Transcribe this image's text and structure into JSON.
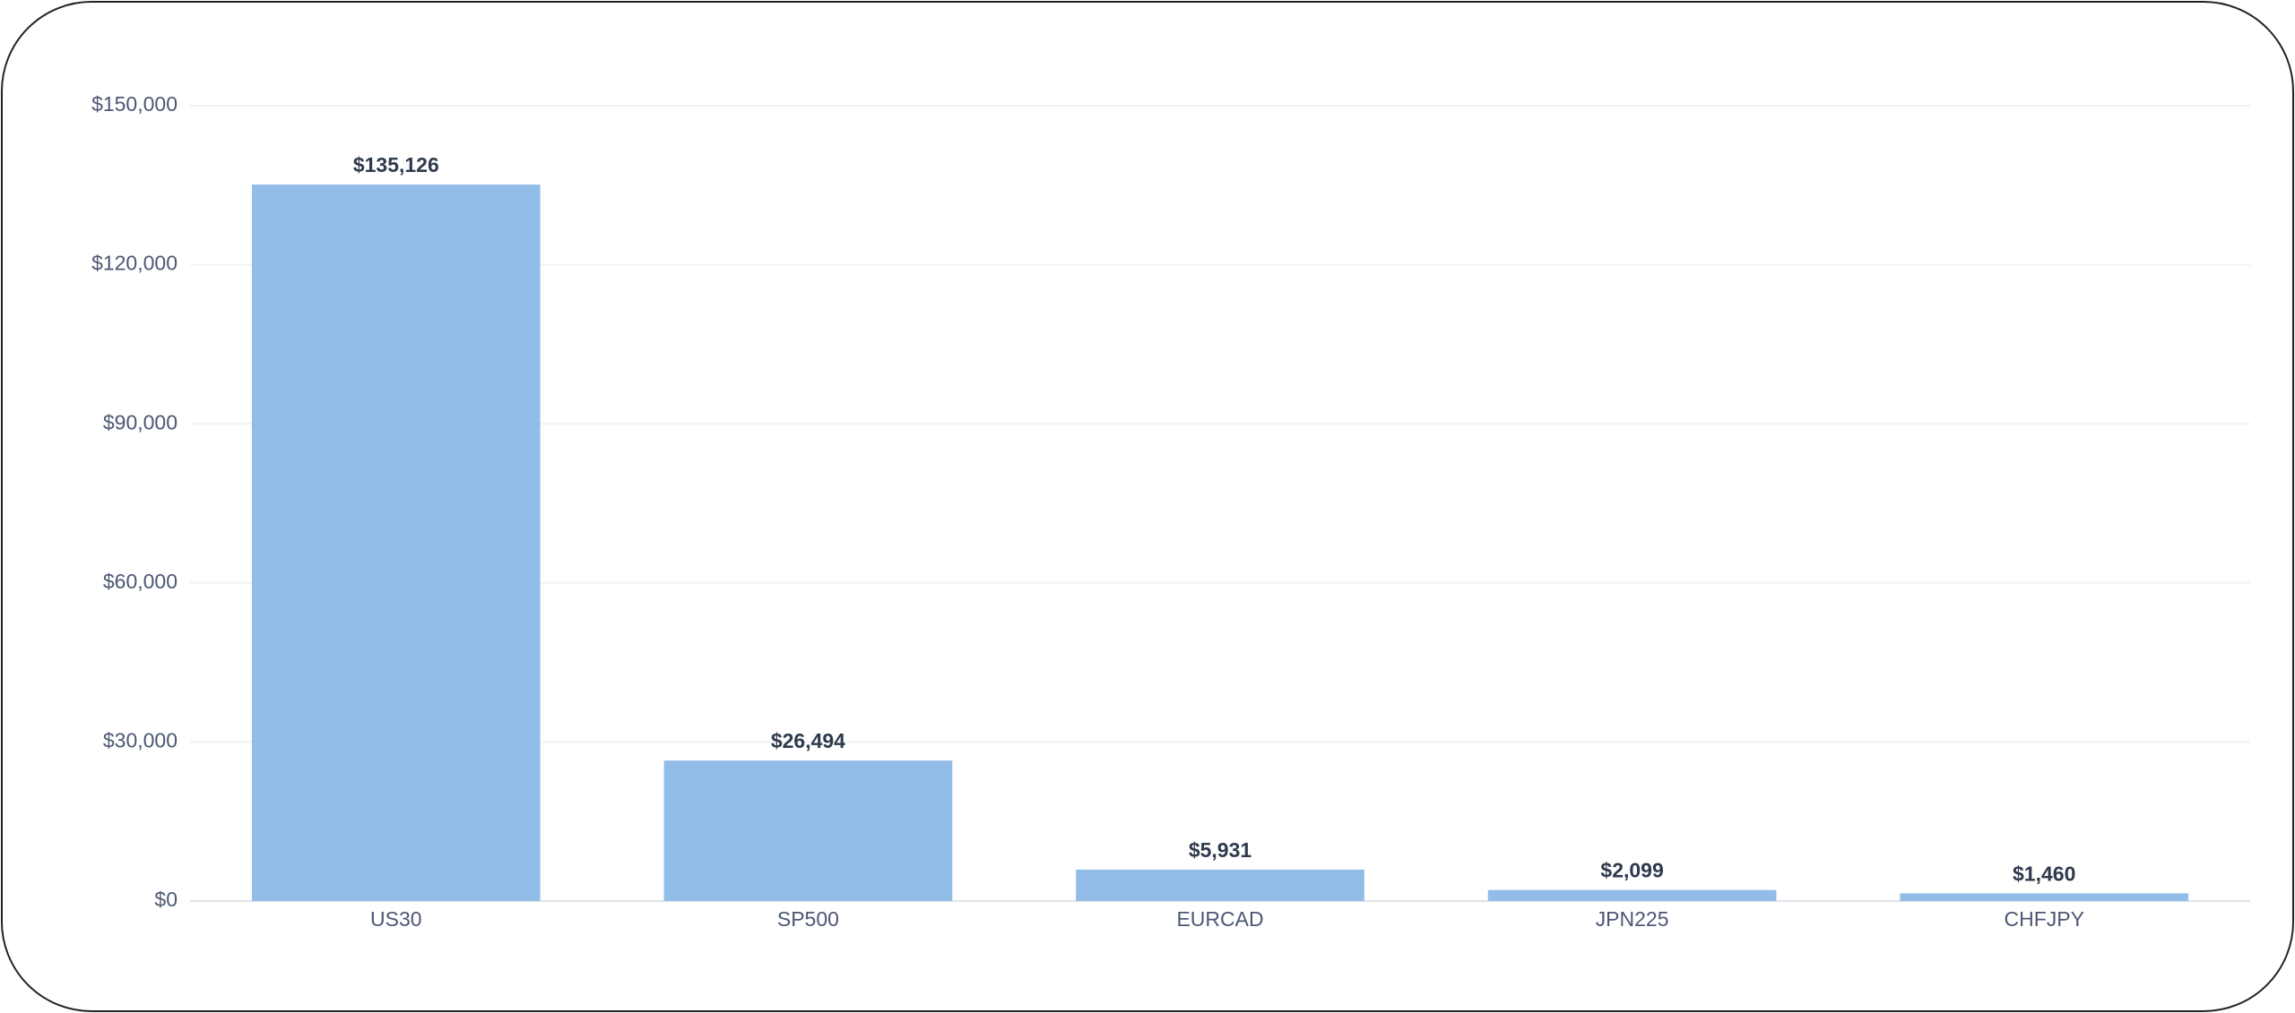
{
  "chart_data": {
    "type": "bar",
    "categories": [
      "US30",
      "SP500",
      "EURCAD",
      "JPN225",
      "CHFJPY"
    ],
    "values": [
      135126,
      26494,
      5931,
      2099,
      1460
    ],
    "value_labels": [
      "$135,126",
      "$26,494",
      "$5,931",
      "$2,099",
      "$1,460"
    ],
    "color": "#93bde9",
    "ylim": [
      0,
      150000
    ],
    "yticks": [
      {
        "value": 0,
        "label": "$0"
      },
      {
        "value": 30000,
        "label": "$30,000"
      },
      {
        "value": 60000,
        "label": "$60,000"
      },
      {
        "value": 90000,
        "label": "$90,000"
      },
      {
        "value": 120000,
        "label": "$120,000"
      },
      {
        "value": 150000,
        "label": "$150,000"
      }
    ],
    "grid": true
  }
}
